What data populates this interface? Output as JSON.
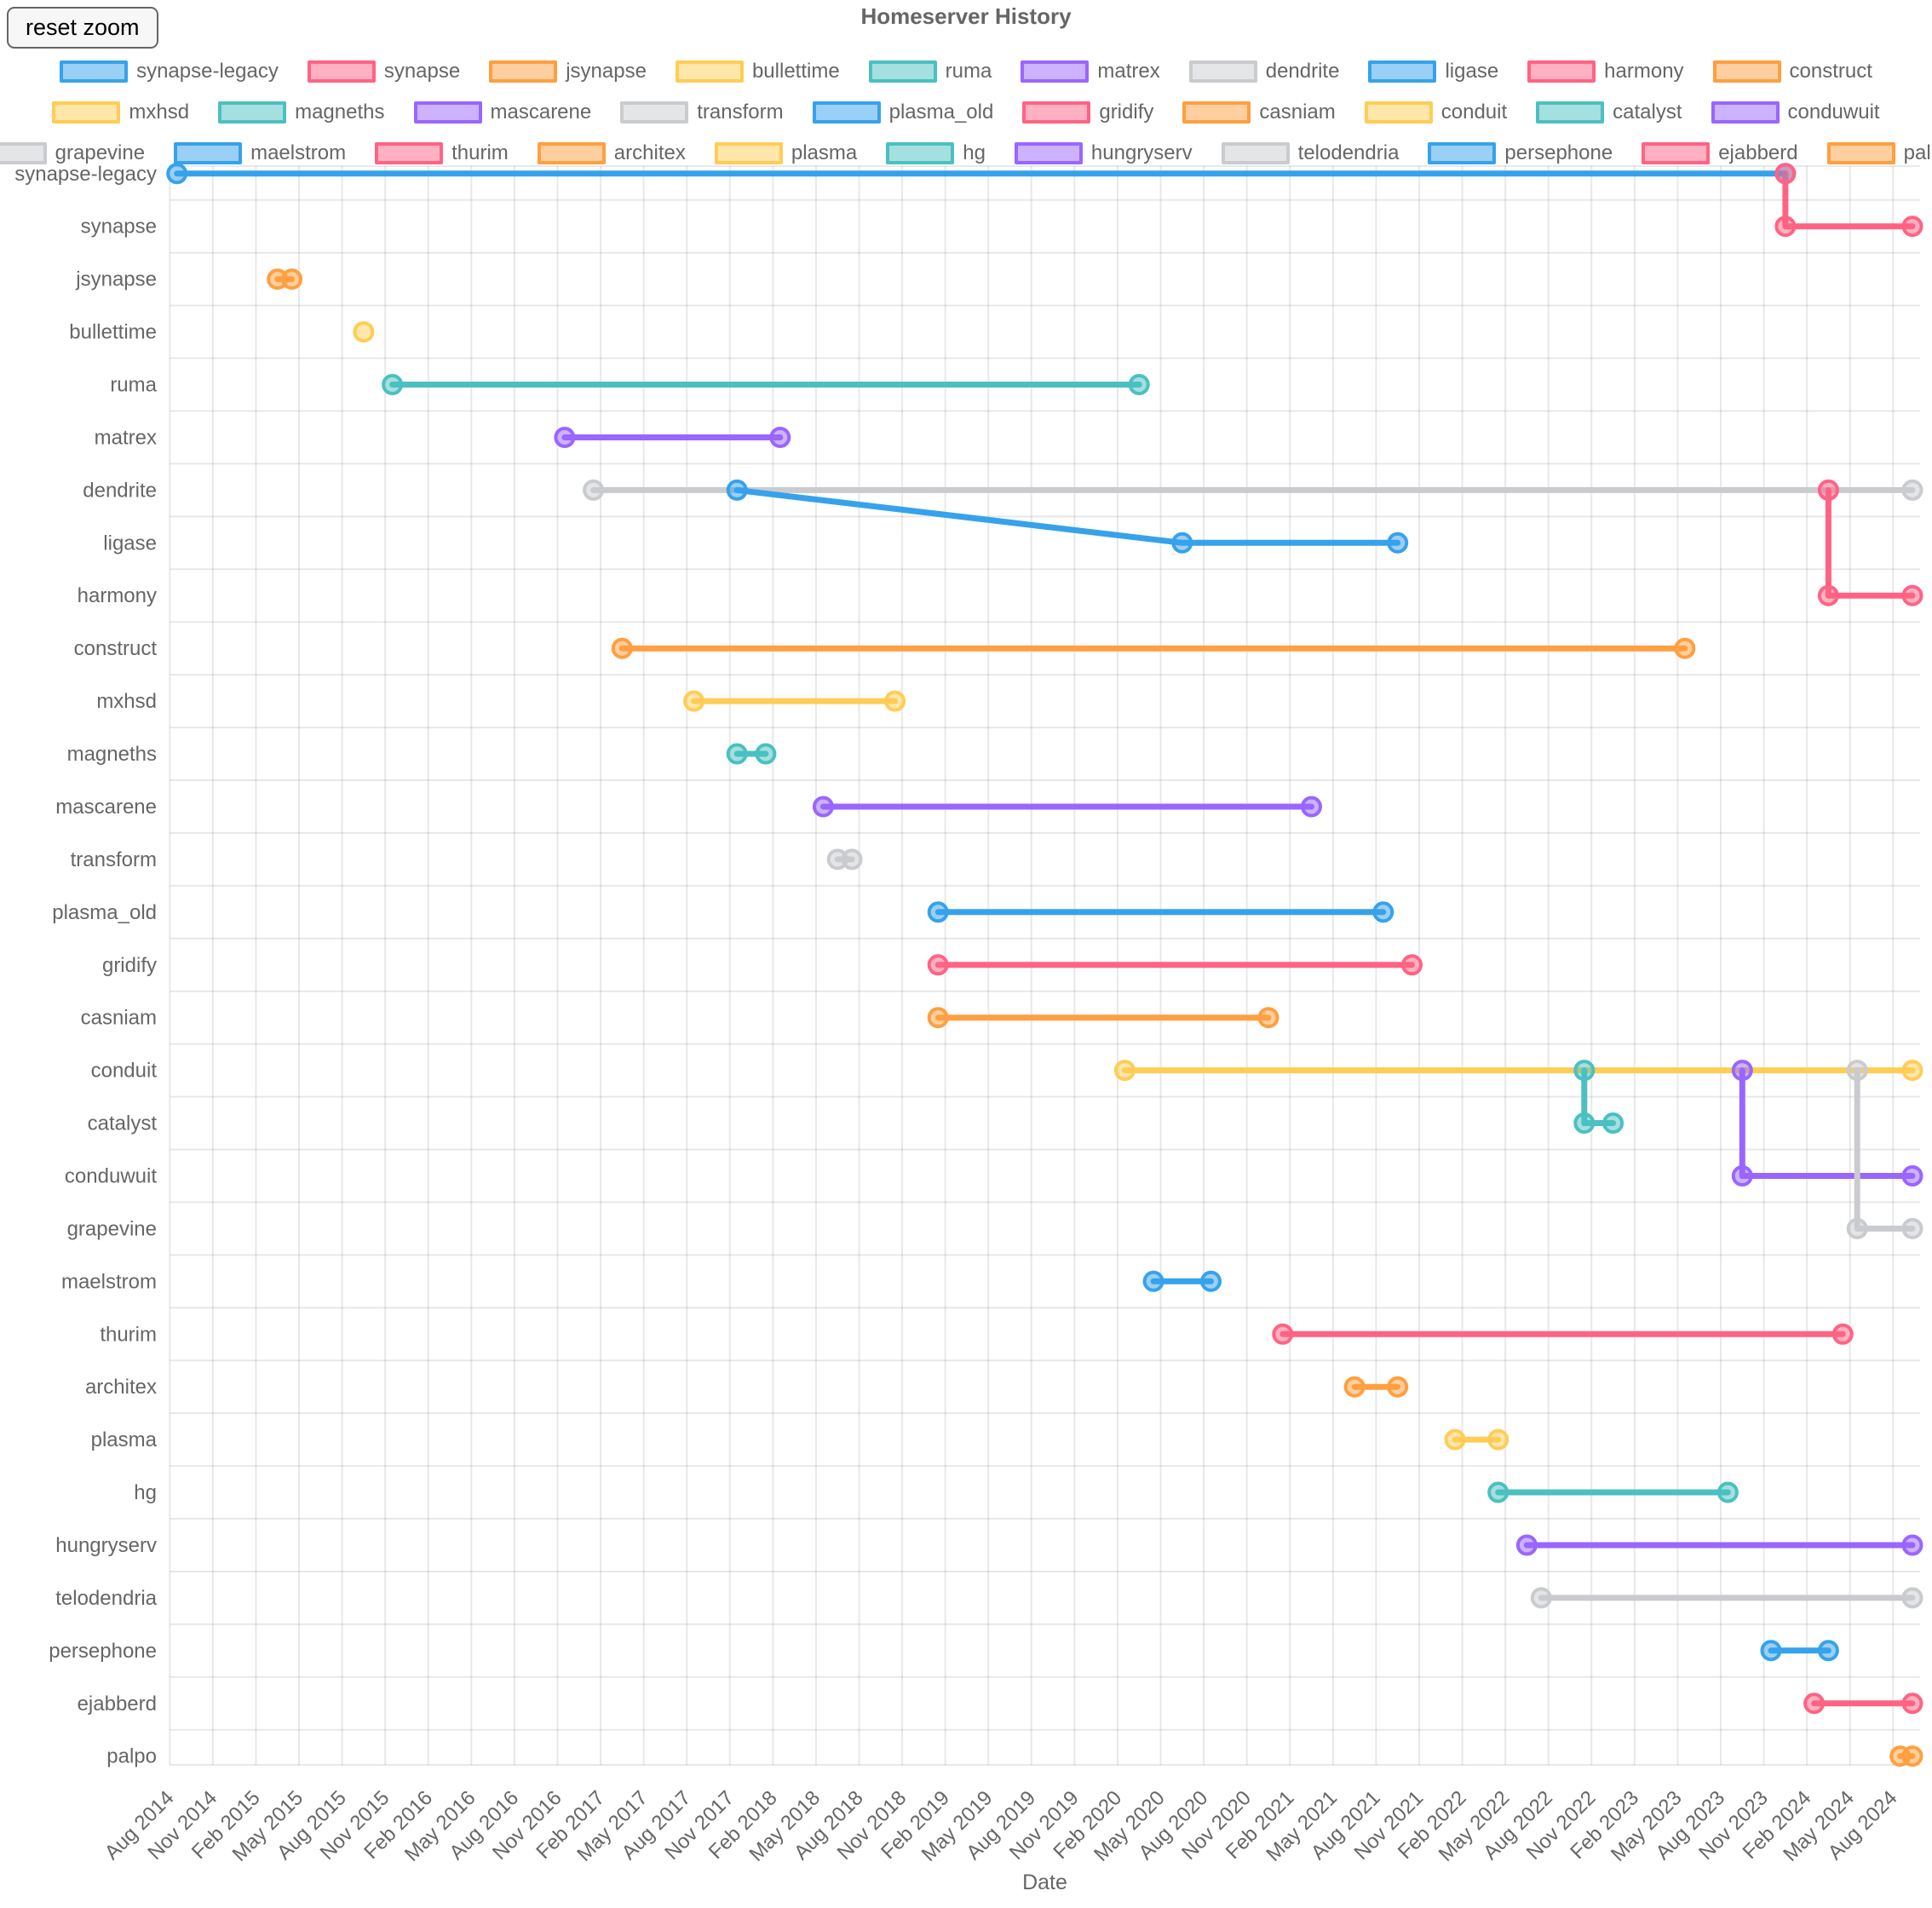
{
  "controls": {
    "reset_zoom_label": "reset zoom"
  },
  "chart_data": {
    "type": "timeline",
    "title": "Homeserver History",
    "xlabel": "Date",
    "x_range": [
      "Aug 2014",
      "Aug 2024"
    ],
    "grid": true,
    "legend": {
      "position": "top",
      "rows": [
        10,
        10,
        11
      ]
    },
    "palette": {
      "blue": "#36A2EB",
      "red": "#FF6384",
      "orange": "#FF9F40",
      "yellow": "#FFCD56",
      "teal": "#4BC0C0",
      "purple": "#9966FF",
      "grey": "#C9CBCF"
    },
    "x_ticks": [
      "Aug 2014",
      "Nov 2014",
      "Feb 2015",
      "May 2015",
      "Aug 2015",
      "Nov 2015",
      "Feb 2016",
      "May 2016",
      "Aug 2016",
      "Nov 2016",
      "Feb 2017",
      "May 2017",
      "Aug 2017",
      "Nov 2017",
      "Feb 2018",
      "May 2018",
      "Aug 2018",
      "Nov 2018",
      "Feb 2019",
      "May 2019",
      "Aug 2019",
      "Nov 2019",
      "Feb 2020",
      "May 2020",
      "Aug 2020",
      "Nov 2020",
      "Feb 2021",
      "May 2021",
      "Aug 2021",
      "Nov 2021",
      "Feb 2022",
      "May 2022",
      "Aug 2022",
      "Nov 2022",
      "Feb 2023",
      "May 2023",
      "Aug 2023",
      "Nov 2023",
      "Feb 2024",
      "May 2024",
      "Aug 2024"
    ],
    "series": [
      {
        "name": "synapse-legacy",
        "color": "#36A2EB",
        "start": "Aug 2014",
        "end": "Dec 2023"
      },
      {
        "name": "synapse",
        "color": "#FF6384",
        "start": "Dec 2023",
        "end": "present",
        "fork_of": "synapse-legacy",
        "fork_date": "Dec 2023"
      },
      {
        "name": "jsynapse",
        "color": "#FF9F40",
        "start": "Mar 2015",
        "end": "Apr 2015"
      },
      {
        "name": "bullettime",
        "color": "#FFCD56",
        "start": "Sep 2015",
        "end": "Sep 2015"
      },
      {
        "name": "ruma",
        "color": "#4BC0C0",
        "start": "Nov 2015",
        "end": "Mar 2020"
      },
      {
        "name": "matrex",
        "color": "#9966FF",
        "start": "Nov 2016",
        "end": "Feb 2018"
      },
      {
        "name": "dendrite",
        "color": "#C9CBCF",
        "start": "Jan 2017",
        "end": "present"
      },
      {
        "name": "ligase",
        "color": "#36A2EB",
        "start": "Jun 2020",
        "end": "Sep 2021",
        "fork_of": "dendrite",
        "fork_date": "Nov 2017"
      },
      {
        "name": "harmony",
        "color": "#FF6384",
        "start": "Mar 2024",
        "end": "present",
        "fork_of": "dendrite",
        "fork_date": "Mar 2024"
      },
      {
        "name": "construct",
        "color": "#FF9F40",
        "start": "Mar 2017",
        "end": "May 2023"
      },
      {
        "name": "mxhsd",
        "color": "#FFCD56",
        "start": "Aug 2017",
        "end": "Oct 2018"
      },
      {
        "name": "magneths",
        "color": "#4BC0C0",
        "start": "Nov 2017",
        "end": "Jan 2018"
      },
      {
        "name": "mascarene",
        "color": "#9966FF",
        "start": "May 2018",
        "end": "Mar 2021"
      },
      {
        "name": "transform",
        "color": "#C9CBCF",
        "start": "Jun 2018",
        "end": "Jul 2018"
      },
      {
        "name": "plasma_old",
        "color": "#36A2EB",
        "start": "Jan 2019",
        "end": "Aug 2021"
      },
      {
        "name": "gridify",
        "color": "#FF6384",
        "start": "Jan 2019",
        "end": "Oct 2021"
      },
      {
        "name": "casniam",
        "color": "#FF9F40",
        "start": "Jan 2019",
        "end": "Dec 2020"
      },
      {
        "name": "conduit",
        "color": "#FFCD56",
        "start": "Feb 2020",
        "end": "present"
      },
      {
        "name": "catalyst",
        "color": "#4BC0C0",
        "start": "Oct 2022",
        "end": "Dec 2022",
        "fork_of": "conduit",
        "fork_date": "Oct 2022"
      },
      {
        "name": "conduwuit",
        "color": "#9966FF",
        "start": "Sep 2023",
        "end": "present",
        "fork_of": "conduit",
        "fork_date": "Sep 2023"
      },
      {
        "name": "grapevine",
        "color": "#C9CBCF",
        "start": "May 2024",
        "end": "present",
        "fork_of": "conduit",
        "fork_date": "May 2024"
      },
      {
        "name": "maelstrom",
        "color": "#36A2EB",
        "start": "Apr 2020",
        "end": "Aug 2020"
      },
      {
        "name": "thurim",
        "color": "#FF6384",
        "start": "Jan 2021",
        "end": "Apr 2024"
      },
      {
        "name": "architex",
        "color": "#FF9F40",
        "start": "Jun 2021",
        "end": "Sep 2021"
      },
      {
        "name": "plasma",
        "color": "#FFCD56",
        "start": "Jan 2022",
        "end": "Apr 2022"
      },
      {
        "name": "hg",
        "color": "#4BC0C0",
        "start": "Apr 2022",
        "end": "Aug 2023"
      },
      {
        "name": "hungryserv",
        "color": "#9966FF",
        "start": "Jun 2022",
        "end": "present"
      },
      {
        "name": "telodendria",
        "color": "#C9CBCF",
        "start": "Jul 2022",
        "end": "present"
      },
      {
        "name": "persephone",
        "color": "#36A2EB",
        "start": "Nov 2023",
        "end": "Mar 2024"
      },
      {
        "name": "ejabberd",
        "color": "#FF6384",
        "start": "Feb 2024",
        "end": "present"
      },
      {
        "name": "palpo",
        "color": "#FF9F40",
        "start": "Aug 2024",
        "end": "present"
      }
    ]
  }
}
